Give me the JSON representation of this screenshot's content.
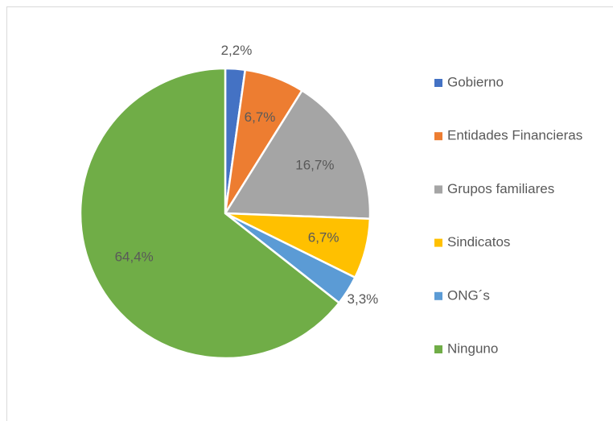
{
  "chart_data": {
    "type": "pie",
    "categories": [
      "Gobierno",
      "Entidades Financieras",
      "Grupos familiares",
      "Sindicatos",
      "ONG´s",
      "Ninguno"
    ],
    "values": [
      2.2,
      6.7,
      16.7,
      6.7,
      3.3,
      64.4
    ],
    "value_labels": [
      "2,2%",
      "6,7%",
      "16,7%",
      "6,7%",
      "3,3%",
      "64,4%"
    ],
    "colors": [
      "#4472c4",
      "#ed7d31",
      "#a5a5a5",
      "#ffc000",
      "#5b9bd5",
      "#70ad47"
    ],
    "legend": "right"
  }
}
